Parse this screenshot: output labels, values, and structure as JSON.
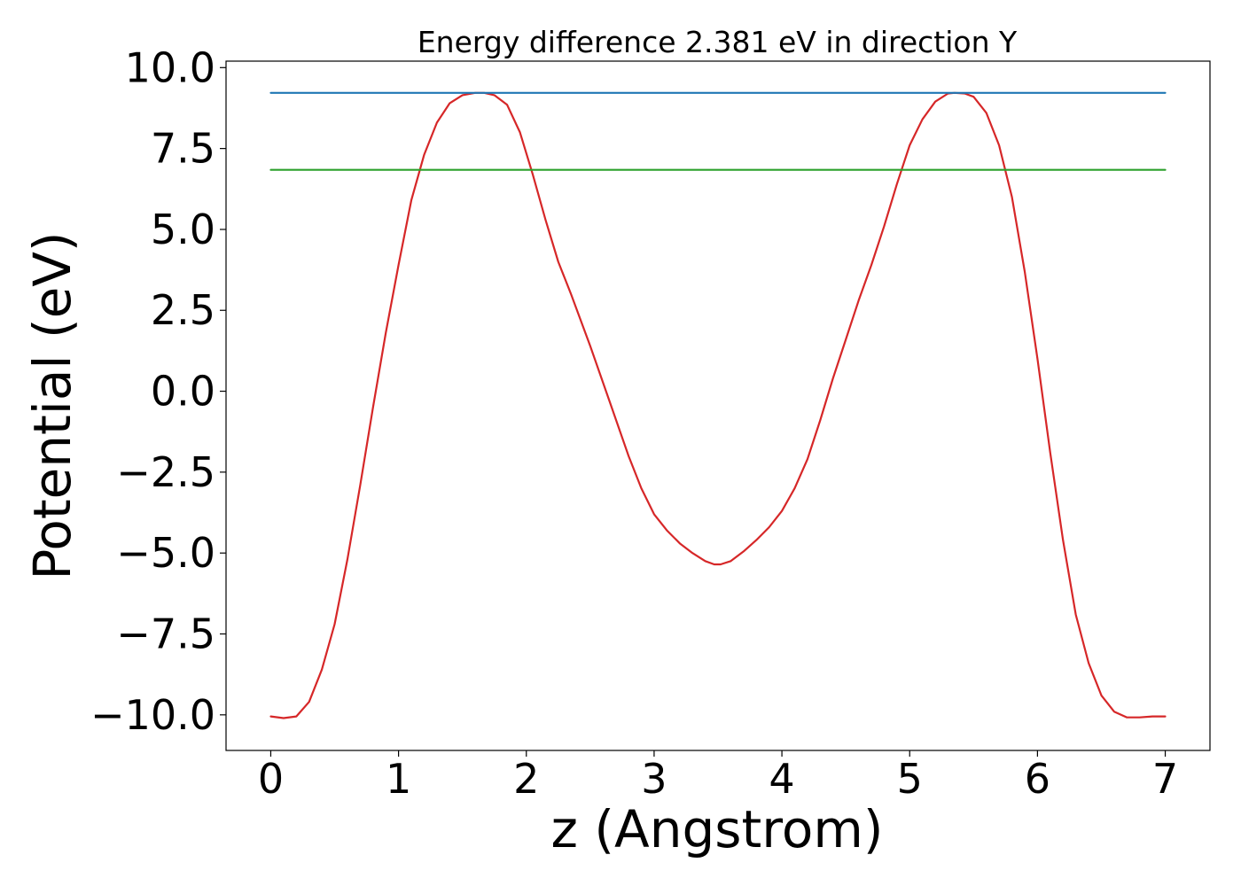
{
  "chart_data": {
    "type": "line",
    "title": "Energy difference 2.381 eV in direction Y",
    "xlabel": "z (Angstrom)",
    "ylabel": "Potential (eV)",
    "xlim": [
      -0.35,
      7.35
    ],
    "ylim": [
      -11.1,
      10.2
    ],
    "x_ticks": [
      0,
      1,
      2,
      3,
      4,
      5,
      6,
      7
    ],
    "x_tick_labels": [
      "0",
      "1",
      "2",
      "3",
      "4",
      "5",
      "6",
      "7"
    ],
    "y_ticks": [
      10.0,
      7.5,
      5.0,
      2.5,
      0.0,
      -2.5,
      -5.0,
      -7.5,
      -10.0
    ],
    "y_tick_labels": [
      "10.0",
      "7.5",
      "5.0",
      "2.5",
      "0.0",
      "−2.5",
      "−5.0",
      "−7.5",
      "−10.0"
    ],
    "grid": false,
    "series": [
      {
        "color": "#d62728",
        "x": [
          0,
          0.1,
          0.2,
          0.3,
          0.4,
          0.5,
          0.6,
          0.7,
          0.8,
          0.9,
          1.0,
          1.1,
          1.2,
          1.3,
          1.4,
          1.5,
          1.6,
          1.67,
          1.75,
          1.85,
          1.95,
          2.05,
          2.15,
          2.25,
          2.35,
          2.5,
          2.65,
          2.8,
          2.9,
          3.0,
          3.1,
          3.2,
          3.3,
          3.4,
          3.47,
          3.52,
          3.6,
          3.7,
          3.8,
          3.9,
          4.0,
          4.1,
          4.2,
          4.3,
          4.4,
          4.5,
          4.6,
          4.7,
          4.8,
          4.9,
          5.0,
          5.1,
          5.2,
          5.3,
          5.35,
          5.43,
          5.5,
          5.6,
          5.7,
          5.8,
          5.9,
          6.0,
          6.1,
          6.2,
          6.3,
          6.4,
          6.5,
          6.6,
          6.7,
          6.8,
          6.9,
          7.0
        ],
        "y": [
          -10.05,
          -10.1,
          -10.05,
          -9.6,
          -8.6,
          -7.2,
          -5.2,
          -2.9,
          -0.5,
          1.8,
          3.9,
          5.9,
          7.3,
          8.3,
          8.9,
          9.15,
          9.22,
          9.22,
          9.15,
          8.85,
          8.0,
          6.7,
          5.3,
          4.0,
          3.0,
          1.4,
          -0.3,
          -2.0,
          -3.0,
          -3.8,
          -4.3,
          -4.7,
          -5.0,
          -5.25,
          -5.35,
          -5.35,
          -5.25,
          -4.95,
          -4.6,
          -4.2,
          -3.7,
          -3.0,
          -2.1,
          -0.9,
          0.4,
          1.6,
          2.8,
          3.9,
          5.1,
          6.4,
          7.6,
          8.4,
          8.95,
          9.2,
          9.22,
          9.2,
          9.1,
          8.6,
          7.6,
          6.0,
          3.7,
          1.0,
          -1.9,
          -4.6,
          -6.9,
          -8.4,
          -9.4,
          -9.9,
          -10.08,
          -10.08,
          -10.05,
          -10.05
        ]
      },
      {
        "color": "#1f77b4",
        "x": [
          0,
          7
        ],
        "y": [
          9.22,
          9.22
        ]
      },
      {
        "color": "#2ca02c",
        "x": [
          0,
          7
        ],
        "y": [
          6.84,
          6.84
        ]
      }
    ]
  }
}
